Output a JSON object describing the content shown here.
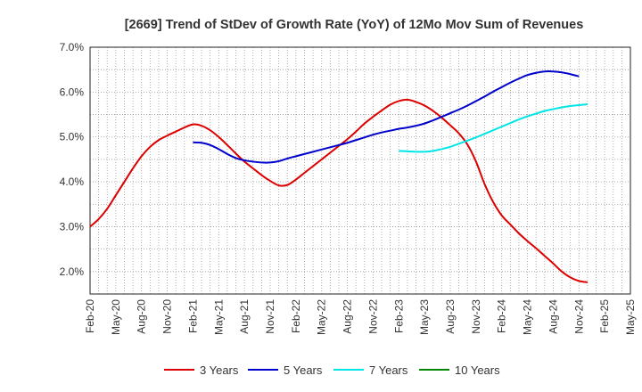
{
  "chart_data": {
    "type": "line",
    "title": "[2669]  Trend of StDev of Growth Rate (YoY) of 12Mo Mov Sum of Revenues",
    "xlabel": "",
    "ylabel": "",
    "x_ticks": [
      "Feb-20",
      "May-20",
      "Aug-20",
      "Nov-20",
      "Feb-21",
      "May-21",
      "Aug-21",
      "Nov-21",
      "Feb-22",
      "May-22",
      "Aug-22",
      "Nov-22",
      "Feb-23",
      "May-23",
      "Aug-23",
      "Nov-23",
      "Feb-24",
      "May-24",
      "Aug-24",
      "Nov-24",
      "Feb-25",
      "May-25"
    ],
    "y_ticks": [
      "2.0%",
      "3.0%",
      "4.0%",
      "5.0%",
      "6.0%",
      "7.0%"
    ],
    "ylim": [
      1.5,
      7.0
    ],
    "grid": true,
    "series": [
      {
        "name": "3 Years",
        "color": "#dd0000",
        "start_index": 0,
        "values": [
          3.0,
          3.17,
          3.4,
          3.7,
          4.0,
          4.3,
          4.57,
          4.78,
          4.93,
          5.03,
          5.12,
          5.21,
          5.28,
          5.25,
          5.15,
          5.0,
          4.82,
          4.63,
          4.45,
          4.3,
          4.15,
          4.02,
          3.92,
          3.93,
          4.05,
          4.2,
          4.35,
          4.5,
          4.65,
          4.8,
          4.95,
          5.12,
          5.3,
          5.45,
          5.59,
          5.72,
          5.8,
          5.83,
          5.78,
          5.7,
          5.58,
          5.43,
          5.26,
          5.08,
          4.83,
          4.45,
          3.95,
          3.55,
          3.25,
          3.05,
          2.85,
          2.68,
          2.52,
          2.35,
          2.18,
          2.0,
          1.87,
          1.79,
          1.76
        ]
      },
      {
        "name": "5 Years",
        "color": "#0000cc",
        "start_index": 12,
        "values": [
          4.88,
          4.87,
          4.82,
          4.73,
          4.62,
          4.53,
          4.48,
          4.45,
          4.43,
          4.43,
          4.46,
          4.52,
          4.57,
          4.62,
          4.67,
          4.72,
          4.77,
          4.82,
          4.87,
          4.93,
          4.99,
          5.05,
          5.1,
          5.14,
          5.18,
          5.21,
          5.25,
          5.3,
          5.37,
          5.45,
          5.53,
          5.61,
          5.7,
          5.8,
          5.9,
          6.01,
          6.11,
          6.21,
          6.3,
          6.38,
          6.43,
          6.46,
          6.46,
          6.44,
          6.4,
          6.35
        ]
      },
      {
        "name": "7 Years",
        "color": "#00e5e5",
        "start_index": 36,
        "values": [
          4.69,
          4.68,
          4.67,
          4.67,
          4.69,
          4.73,
          4.78,
          4.85,
          4.92,
          4.99,
          5.07,
          5.15,
          5.23,
          5.31,
          5.39,
          5.46,
          5.52,
          5.58,
          5.62,
          5.66,
          5.69,
          5.71,
          5.73
        ]
      },
      {
        "name": "10 Years",
        "color": "#008800",
        "start_index": 0,
        "values": []
      }
    ]
  }
}
